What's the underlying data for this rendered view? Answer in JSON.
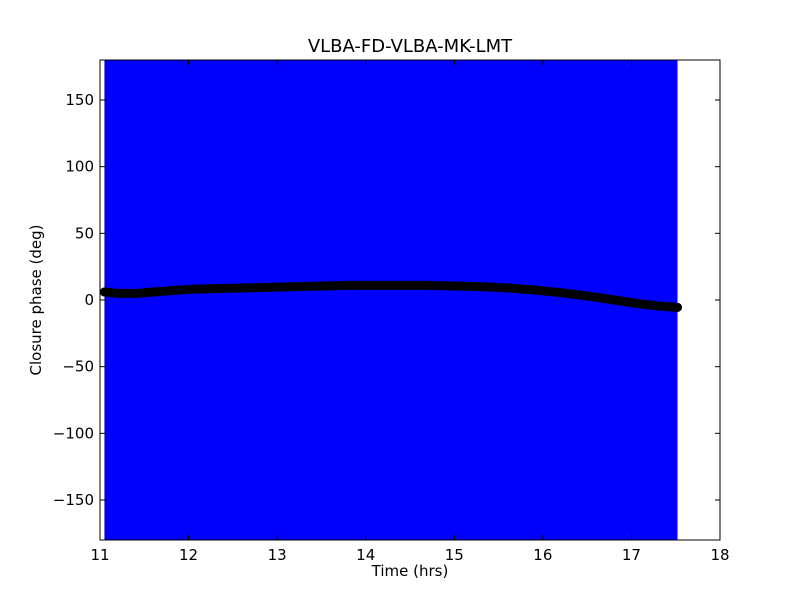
{
  "chart_data": {
    "type": "scatter",
    "title": "VLBA-FD-VLBA-MK-LMT",
    "xlabel": "Time (hrs)",
    "ylabel": "Closure phase (deg)",
    "xlim": [
      11,
      18
    ],
    "ylim": [
      -180,
      180
    ],
    "x_ticks": [
      11,
      12,
      13,
      14,
      15,
      16,
      17,
      18
    ],
    "y_ticks": [
      -150,
      -100,
      -50,
      0,
      50,
      100,
      150
    ],
    "y_tick_labels": [
      "−150",
      "−100",
      "−50",
      "0",
      "50",
      "100",
      "150"
    ],
    "grid": false,
    "legend": "none",
    "error_band": {
      "x_start": 11.05,
      "x_end": 17.52,
      "y_min": -180,
      "y_max": 180,
      "color": "#0000ff"
    },
    "marker_color": "#000000",
    "series": [
      {
        "x": [
          11.05,
          11.2,
          11.4,
          11.6,
          11.8,
          12.0,
          12.3,
          12.6,
          12.9,
          13.2,
          13.5,
          13.8,
          14.1,
          14.4,
          14.7,
          15.0,
          15.3,
          15.6,
          15.9,
          16.2,
          16.5,
          16.8,
          17.1,
          17.3,
          17.52
        ],
        "values": [
          6,
          5,
          5,
          6,
          7,
          8,
          8.5,
          9,
          9.5,
          10,
          10.5,
          11,
          11,
          11,
          11,
          10.5,
          10,
          9,
          7.5,
          5.5,
          3,
          0,
          -3,
          -4.5,
          -5.5
        ]
      }
    ]
  }
}
